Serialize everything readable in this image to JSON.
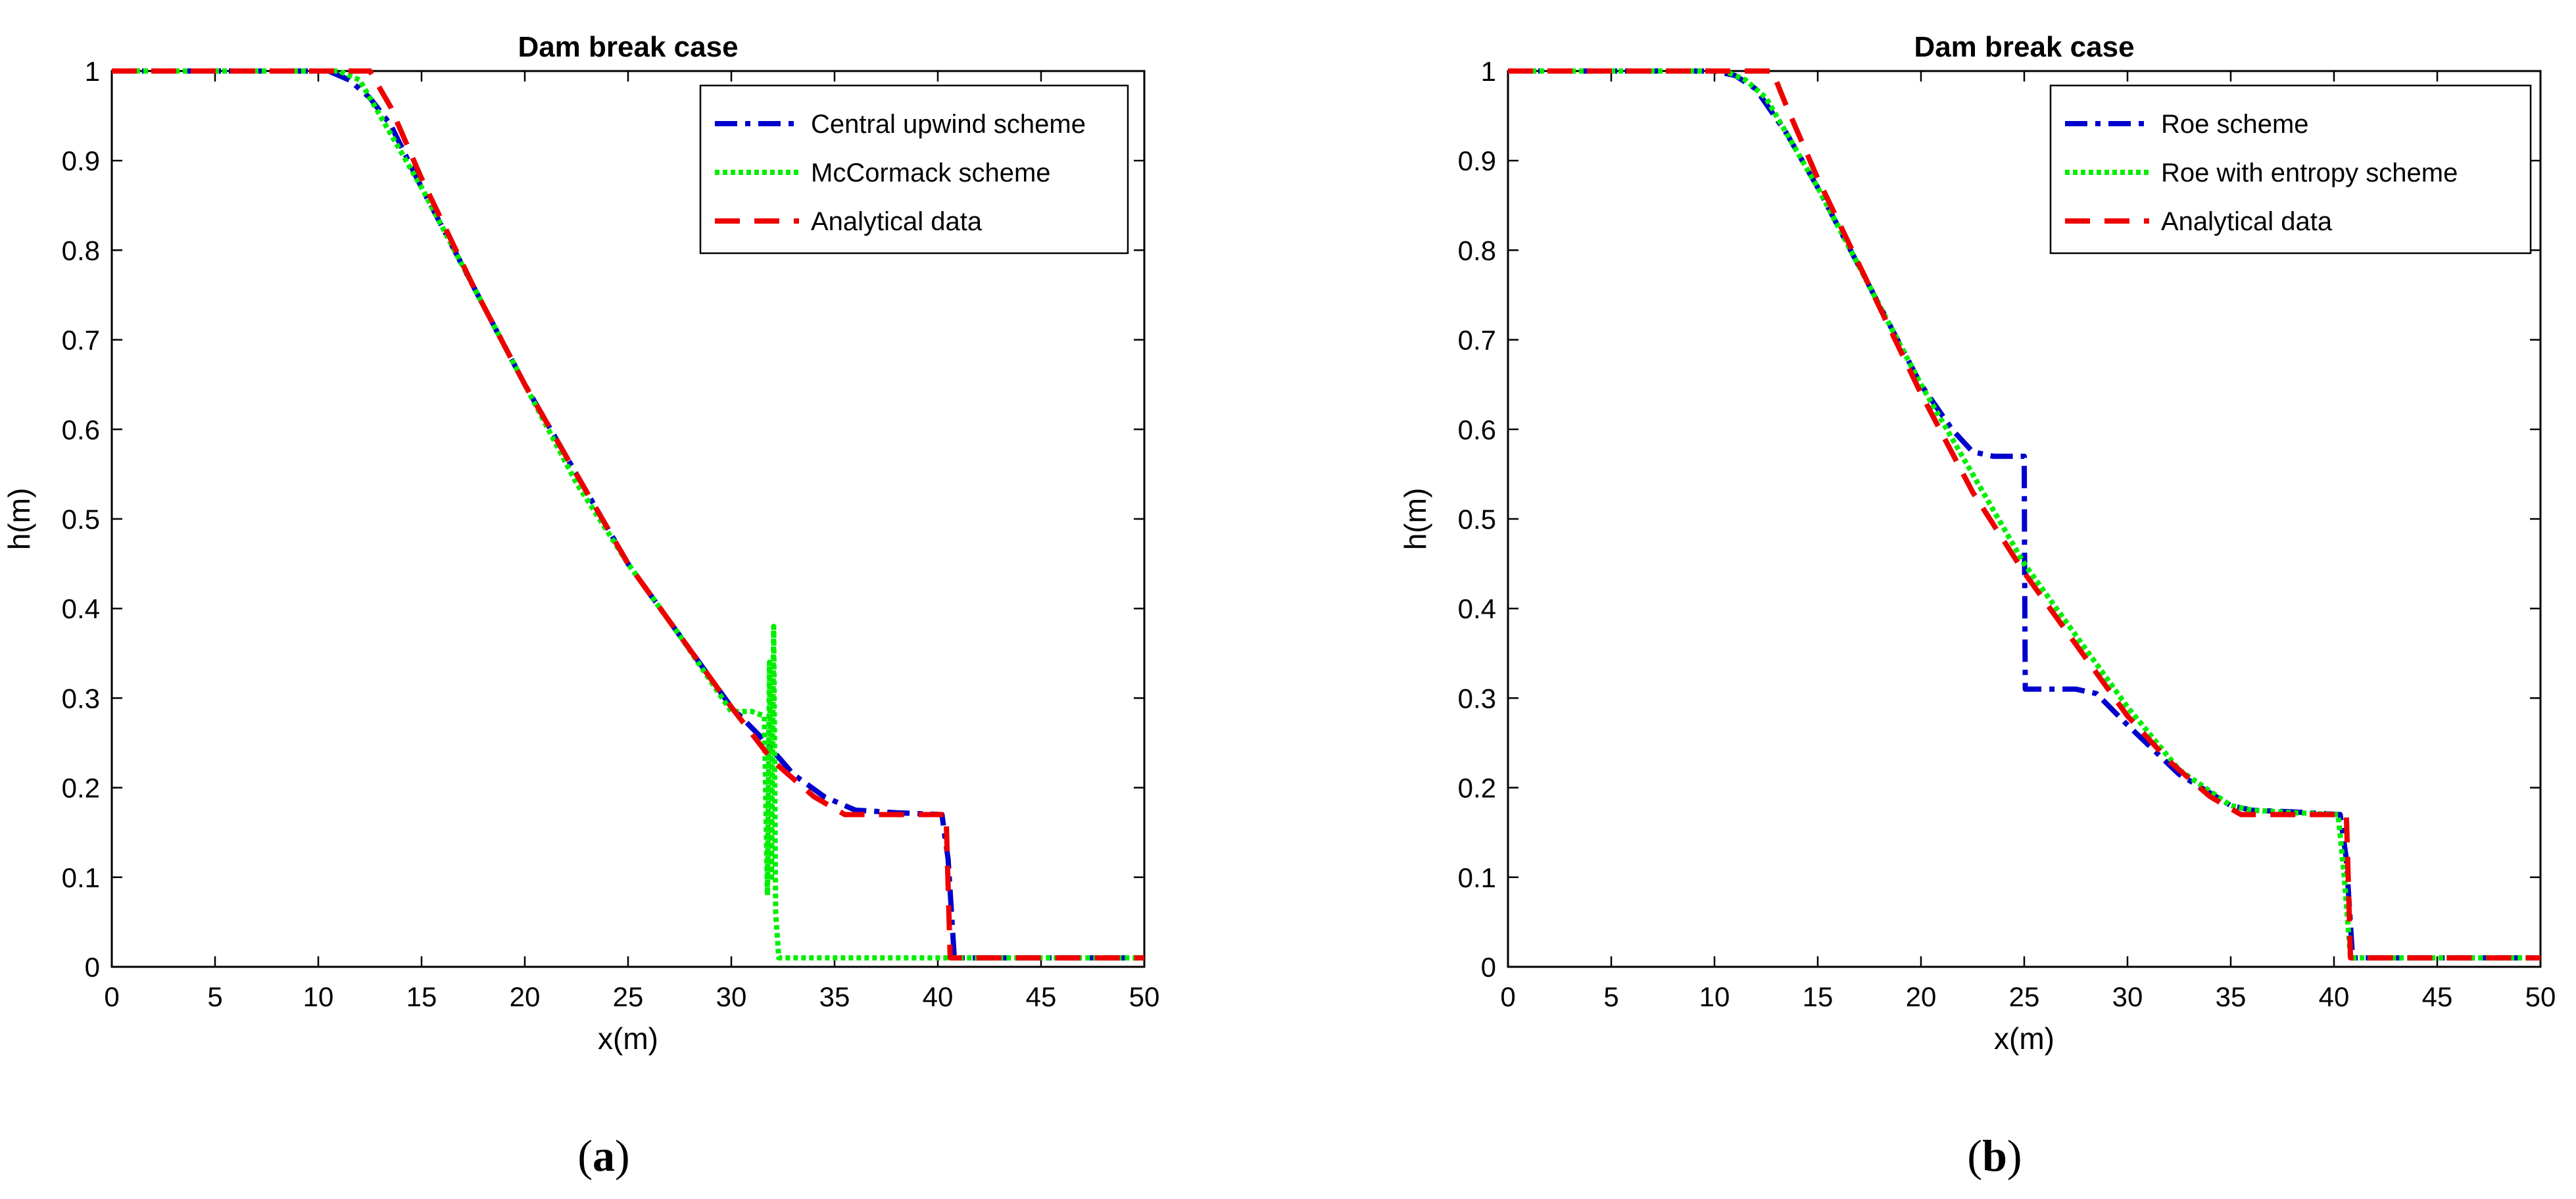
{
  "panels": [
    {
      "label_letter": "a",
      "chart_data": {
        "type": "line",
        "title": "Dam break case",
        "xlabel": "x(m)",
        "ylabel": "h(m)",
        "xlim": [
          0,
          50
        ],
        "ylim": [
          0,
          1
        ],
        "xticks": [
          0,
          5,
          10,
          15,
          20,
          25,
          30,
          35,
          40,
          45,
          50
        ],
        "yticks": [
          0,
          0.1,
          0.2,
          0.3,
          0.4,
          0.5,
          0.6,
          0.7,
          0.8,
          0.9,
          1
        ],
        "grid": false,
        "legend_position": "top-right",
        "series": [
          {
            "name": "Central upwind scheme",
            "color": "#0000cc",
            "style": "dashdot",
            "x": [
              0,
              10.5,
              11.5,
              12.5,
              13.5,
              15,
              17.5,
              20,
              22.5,
              25,
              27.5,
              30,
              31.5,
              33,
              34.5,
              36,
              38,
              40.2,
              40.5,
              40.8,
              45,
              50
            ],
            "y": [
              1,
              1,
              0.99,
              0.97,
              0.94,
              0.87,
              0.76,
              0.65,
              0.55,
              0.45,
              0.37,
              0.29,
              0.255,
              0.215,
              0.19,
              0.175,
              0.172,
              0.17,
              0.12,
              0.01,
              0.01,
              0.01
            ]
          },
          {
            "name": "McCormack scheme",
            "color": "#00ee00",
            "style": "dotted",
            "x": [
              0,
              11,
              12,
              13,
              15,
              17.5,
              20,
              22.5,
              25,
              27.5,
              30,
              31,
              31.6,
              31.75,
              31.85,
              31.95,
              32.05,
              32.15,
              32.3,
              32.6,
              35,
              40,
              45,
              50
            ],
            "y": [
              1,
              1,
              0.99,
              0.95,
              0.87,
              0.76,
              0.65,
              0.54,
              0.45,
              0.37,
              0.285,
              0.285,
              0.28,
              0.08,
              0.34,
              0.1,
              0.38,
              0.06,
              0.01,
              0.01,
              0.01,
              0.01,
              0.01,
              0.01
            ]
          },
          {
            "name": "Analytical data",
            "color": "#ee0000",
            "style": "dashed",
            "x": [
              0,
              12.5,
              13.5,
              15,
              17.5,
              20,
              22.5,
              25,
              27.5,
              30,
              32,
              34,
              35.5,
              36,
              38,
              40.4,
              40.5,
              40.6,
              45,
              50
            ],
            "y": [
              1,
              1,
              0.96,
              0.88,
              0.76,
              0.65,
              0.55,
              0.45,
              0.37,
              0.29,
              0.23,
              0.19,
              0.17,
              0.17,
              0.17,
              0.17,
              0.09,
              0.01,
              0.01,
              0.01
            ]
          }
        ]
      }
    },
    {
      "label_letter": "b",
      "chart_data": {
        "type": "line",
        "title": "Dam break case",
        "xlabel": "x(m)",
        "ylabel": "h(m)",
        "xlim": [
          0,
          50
        ],
        "ylim": [
          0,
          1
        ],
        "xticks": [
          0,
          5,
          10,
          15,
          20,
          25,
          30,
          35,
          40,
          45,
          50
        ],
        "yticks": [
          0,
          0.1,
          0.2,
          0.3,
          0.4,
          0.5,
          0.6,
          0.7,
          0.8,
          0.9,
          1
        ],
        "grid": false,
        "legend_position": "top-right",
        "series": [
          {
            "name": "Roe scheme",
            "color": "#0000cc",
            "style": "dashdot",
            "x": [
              0,
              10,
              11,
              12,
              13.5,
              15,
              17.5,
              20,
              21.5,
              22.5,
              23.5,
              25,
              25.02,
              25.05,
              27.5,
              28.5,
              30,
              32.5,
              35,
              36,
              38,
              40.3,
              40.6,
              40.9,
              45,
              50
            ],
            "y": [
              1,
              1,
              0.995,
              0.98,
              0.93,
              0.87,
              0.76,
              0.65,
              0.6,
              0.575,
              0.57,
              0.57,
              0.44,
              0.31,
              0.31,
              0.305,
              0.27,
              0.215,
              0.18,
              0.175,
              0.173,
              0.17,
              0.12,
              0.01,
              0.01,
              0.01
            ]
          },
          {
            "name": "Roe with entropy scheme",
            "color": "#00ee00",
            "style": "dotted",
            "x": [
              0,
              10.5,
              11.5,
              12.5,
              13.5,
              15,
              17.5,
              20,
              22.5,
              25,
              27.5,
              30,
              32.5,
              35,
              36,
              38,
              40.2,
              40.5,
              40.8,
              45,
              50
            ],
            "y": [
              1,
              1,
              0.99,
              0.97,
              0.93,
              0.87,
              0.76,
              0.65,
              0.55,
              0.45,
              0.37,
              0.29,
              0.22,
              0.18,
              0.175,
              0.172,
              0.17,
              0.1,
              0.01,
              0.01,
              0.01
            ]
          },
          {
            "name": "Analytical data",
            "color": "#ee0000",
            "style": "dashed",
            "x": [
              0,
              12.8,
              13.5,
              15,
              17.5,
              20,
              22.5,
              25,
              27.5,
              30,
              32,
              34,
              35.5,
              36,
              38,
              40.6,
              40.7,
              40.8,
              45,
              50
            ],
            "y": [
              1,
              1,
              0.96,
              0.88,
              0.76,
              0.64,
              0.53,
              0.44,
              0.36,
              0.28,
              0.23,
              0.19,
              0.17,
              0.17,
              0.17,
              0.17,
              0.09,
              0.01,
              0.01,
              0.01
            ]
          }
        ]
      }
    }
  ]
}
